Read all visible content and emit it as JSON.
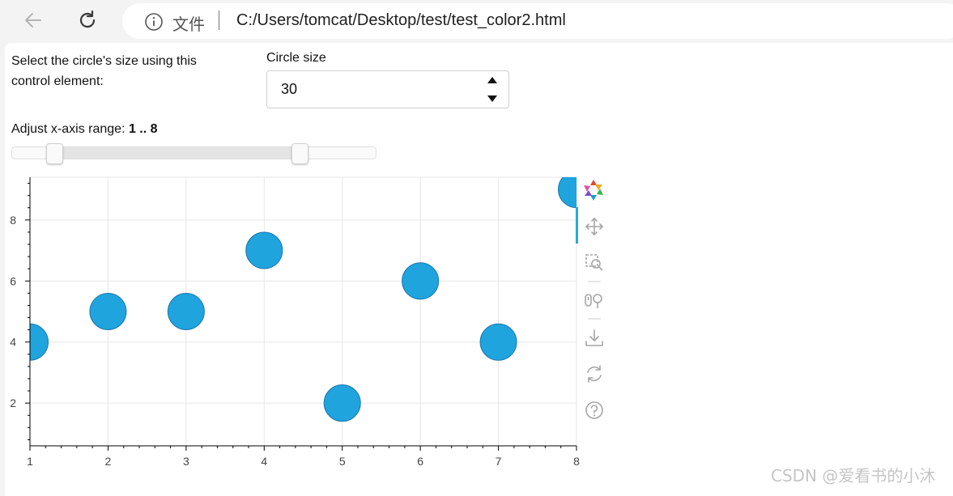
{
  "browser": {
    "scheme_label": "文件",
    "url": "C:/Users/tomcat/Desktop/test/test_color2.html"
  },
  "controls": {
    "size_description": "Select the circle's size using this control element:",
    "size_label": "Circle size",
    "size_value": "30",
    "range_label_prefix": "Adjust x-axis range: ",
    "range_value_text": "1 .. 8",
    "range_slider": {
      "min": 0,
      "max": 10,
      "value_start": 1,
      "value_end": 8
    }
  },
  "chart_data": {
    "type": "scatter",
    "x": [
      1,
      2,
      3,
      4,
      5,
      6,
      7,
      8
    ],
    "y": [
      4,
      5,
      5,
      7,
      2,
      6,
      4,
      9
    ],
    "marker_size": 30,
    "marker_color": "#1fa4de",
    "marker_edge_color": "#1c78b0",
    "xlim": [
      1,
      8
    ],
    "ylim": [
      0.6,
      9.4
    ],
    "x_ticks": [
      1,
      2,
      3,
      4,
      5,
      6,
      7,
      8
    ],
    "y_ticks": [
      2,
      4,
      6,
      8
    ],
    "grid": true,
    "xlabel": "",
    "ylabel": "",
    "title": ""
  },
  "toolbar_tools": [
    "bokeh-logo-icon",
    "pan-icon",
    "box-zoom-icon",
    "wheel-zoom-icon",
    "save-icon",
    "reset-icon",
    "help-icon"
  ],
  "watermark": "CSDN @爱看书的小沐"
}
